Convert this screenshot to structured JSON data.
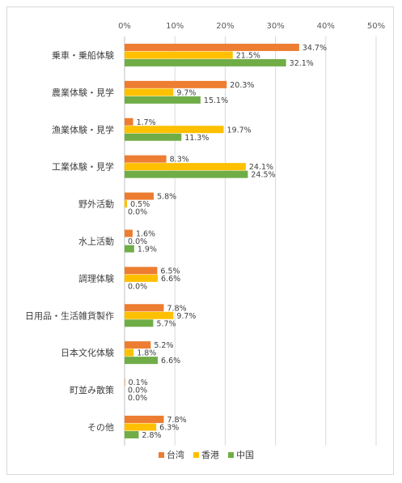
{
  "chart_data": {
    "type": "bar",
    "orientation": "horizontal",
    "categories": [
      "乗車・乗船体験",
      "農業体験・見学",
      "漁業体験・見学",
      "工業体験・見学",
      "野外活動",
      "水上活動",
      "調理体験",
      "日用品・生活雑貨製作",
      "日本文化体験",
      "町並み散策",
      "その他"
    ],
    "series": [
      {
        "name": "台湾",
        "color": "#ED7D31",
        "values": [
          34.7,
          20.3,
          1.7,
          8.3,
          5.8,
          1.6,
          6.5,
          7.8,
          5.2,
          0.1,
          7.8
        ]
      },
      {
        "name": "香港",
        "color": "#FFC000",
        "values": [
          21.5,
          9.7,
          19.7,
          24.1,
          0.5,
          0.0,
          6.6,
          9.7,
          1.8,
          0.0,
          6.3
        ]
      },
      {
        "name": "中国",
        "color": "#70AD47",
        "values": [
          32.1,
          15.1,
          11.3,
          24.5,
          0.0,
          1.9,
          0.0,
          5.7,
          6.6,
          0.0,
          2.8
        ]
      }
    ],
    "xlim": [
      0,
      50
    ],
    "x_ticks": [
      "0%",
      "10%",
      "20%",
      "30%",
      "40%",
      "50%"
    ],
    "value_suffix": "%",
    "grid": true,
    "legend_position": "bottom"
  }
}
